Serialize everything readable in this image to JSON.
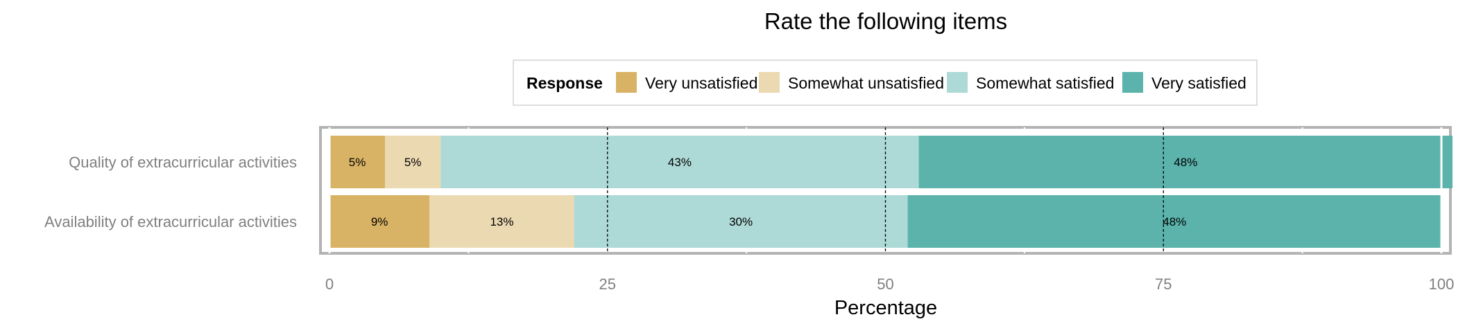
{
  "chart_data": {
    "type": "bar",
    "orientation": "horizontal",
    "stacked": true,
    "title": "Rate the following items",
    "xlabel": "Percentage",
    "ylabel": "",
    "xlim": [
      0,
      100
    ],
    "x_ticks": [
      "0",
      "25",
      "50",
      "75",
      "100"
    ],
    "grid": true,
    "legend": {
      "title": "Response",
      "position": "top"
    },
    "categories": [
      "Quality of extracurricular activities",
      "Availability of extracurricular activities"
    ],
    "series": [
      {
        "name": "Very unsatisfied",
        "color": "#d9b365",
        "values": [
          5,
          9
        ]
      },
      {
        "name": "Somewhat unsatisfied",
        "color": "#ebd9b2",
        "values": [
          5,
          13
        ]
      },
      {
        "name": "Somewhat satisfied",
        "color": "#add9d6",
        "values": [
          43,
          30
        ]
      },
      {
        "name": "Very satisfied",
        "color": "#5bb3ac",
        "values": [
          48,
          48
        ]
      }
    ],
    "data_labels": [
      [
        "5%",
        "5%",
        "43%",
        "48%"
      ],
      [
        "9%",
        "13%",
        "30%",
        "48%"
      ]
    ]
  }
}
